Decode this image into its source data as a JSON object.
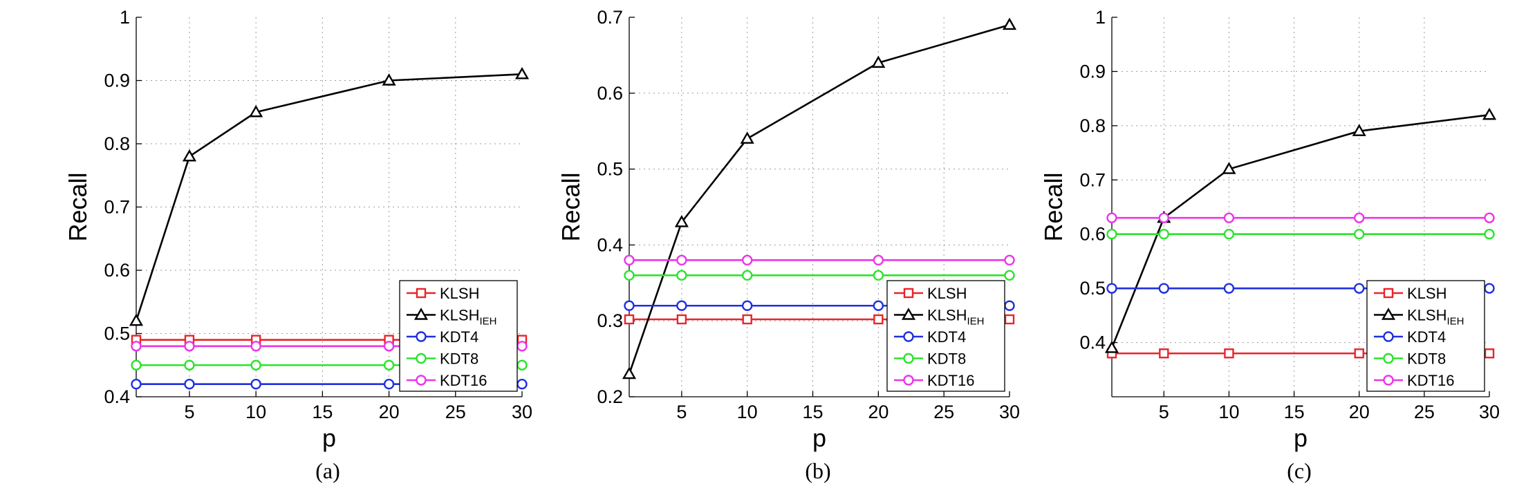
{
  "chart_data": [
    {
      "type": "line",
      "caption": "(a)",
      "xlabel": "p",
      "ylabel": "Recall",
      "xlim": [
        1,
        30
      ],
      "ylim": [
        0.4,
        1.0
      ],
      "xticks": [
        5,
        10,
        15,
        20,
        25,
        30
      ],
      "yticks": [
        0.4,
        0.5,
        0.6,
        0.7,
        0.8,
        0.9,
        1.0
      ],
      "ytick_labels": [
        "0.4",
        "0.5",
        "0.6",
        "0.7",
        "0.8",
        "0.9",
        "1"
      ],
      "grid": true,
      "legend_position": "bottom-right",
      "x": [
        1,
        5,
        10,
        20,
        30
      ],
      "series": [
        {
          "name": "KLSH",
          "color": "#e8242a",
          "marker": "square",
          "values": [
            0.49,
            0.49,
            0.49,
            0.49,
            0.49
          ]
        },
        {
          "name": "KLSH",
          "name_sub": "IEH",
          "color": "#000000",
          "marker": "triangle",
          "values": [
            0.52,
            0.78,
            0.85,
            0.9,
            0.91
          ]
        },
        {
          "name": "KDT4",
          "color": "#1f2fe0",
          "marker": "circle",
          "values": [
            0.42,
            0.42,
            0.42,
            0.42,
            0.42
          ]
        },
        {
          "name": "KDT8",
          "color": "#2be32b",
          "marker": "circle",
          "values": [
            0.45,
            0.45,
            0.45,
            0.45,
            0.45
          ]
        },
        {
          "name": "KDT16",
          "color": "#ea35ea",
          "marker": "circle",
          "values": [
            0.48,
            0.48,
            0.48,
            0.48,
            0.48
          ]
        }
      ]
    },
    {
      "type": "line",
      "caption": "(b)",
      "xlabel": "p",
      "ylabel": "Recall",
      "xlim": [
        1,
        30
      ],
      "ylim": [
        0.2,
        0.7
      ],
      "xticks": [
        5,
        10,
        15,
        20,
        25,
        30
      ],
      "yticks": [
        0.2,
        0.3,
        0.4,
        0.5,
        0.6,
        0.7
      ],
      "ytick_labels": [
        "0.2",
        "0.3",
        "0.4",
        "0.5",
        "0.6",
        "0.7"
      ],
      "grid": true,
      "legend_position": "bottom-right",
      "x": [
        1,
        5,
        10,
        20,
        30
      ],
      "series": [
        {
          "name": "KLSH",
          "color": "#e8242a",
          "marker": "square",
          "values": [
            0.302,
            0.302,
            0.302,
            0.302,
            0.302
          ]
        },
        {
          "name": "KLSH",
          "name_sub": "IEH",
          "color": "#000000",
          "marker": "triangle",
          "values": [
            0.23,
            0.43,
            0.54,
            0.64,
            0.69
          ]
        },
        {
          "name": "KDT4",
          "color": "#1f2fe0",
          "marker": "circle",
          "values": [
            0.32,
            0.32,
            0.32,
            0.32,
            0.32
          ]
        },
        {
          "name": "KDT8",
          "color": "#2be32b",
          "marker": "circle",
          "values": [
            0.36,
            0.36,
            0.36,
            0.36,
            0.36
          ]
        },
        {
          "name": "KDT16",
          "color": "#ea35ea",
          "marker": "circle",
          "values": [
            0.38,
            0.38,
            0.38,
            0.38,
            0.38
          ]
        }
      ]
    },
    {
      "type": "line",
      "caption": "(c)",
      "xlabel": "p",
      "ylabel": "Recall",
      "xlim": [
        1,
        30
      ],
      "ylim": [
        0.3,
        1.0
      ],
      "xticks": [
        5,
        10,
        15,
        20,
        25,
        30
      ],
      "yticks": [
        0.4,
        0.5,
        0.6,
        0.7,
        0.8,
        0.9,
        1.0
      ],
      "ytick_labels": [
        "0.4",
        "0.5",
        "0.6",
        "0.7",
        "0.8",
        "0.9",
        "1"
      ],
      "grid": true,
      "legend_position": "bottom-right",
      "x": [
        1,
        5,
        10,
        20,
        30
      ],
      "series": [
        {
          "name": "KLSH",
          "color": "#e8242a",
          "marker": "square",
          "values": [
            0.38,
            0.38,
            0.38,
            0.38,
            0.38
          ]
        },
        {
          "name": "KLSH",
          "name_sub": "IEH",
          "color": "#000000",
          "marker": "triangle",
          "values": [
            0.39,
            0.63,
            0.72,
            0.79,
            0.82
          ]
        },
        {
          "name": "KDT4",
          "color": "#1f2fe0",
          "marker": "circle",
          "values": [
            0.5,
            0.5,
            0.5,
            0.5,
            0.5
          ]
        },
        {
          "name": "KDT8",
          "color": "#2be32b",
          "marker": "circle",
          "values": [
            0.6,
            0.6,
            0.6,
            0.6,
            0.6
          ]
        },
        {
          "name": "KDT16",
          "color": "#ea35ea",
          "marker": "circle",
          "values": [
            0.63,
            0.63,
            0.63,
            0.63,
            0.63
          ]
        }
      ]
    }
  ]
}
